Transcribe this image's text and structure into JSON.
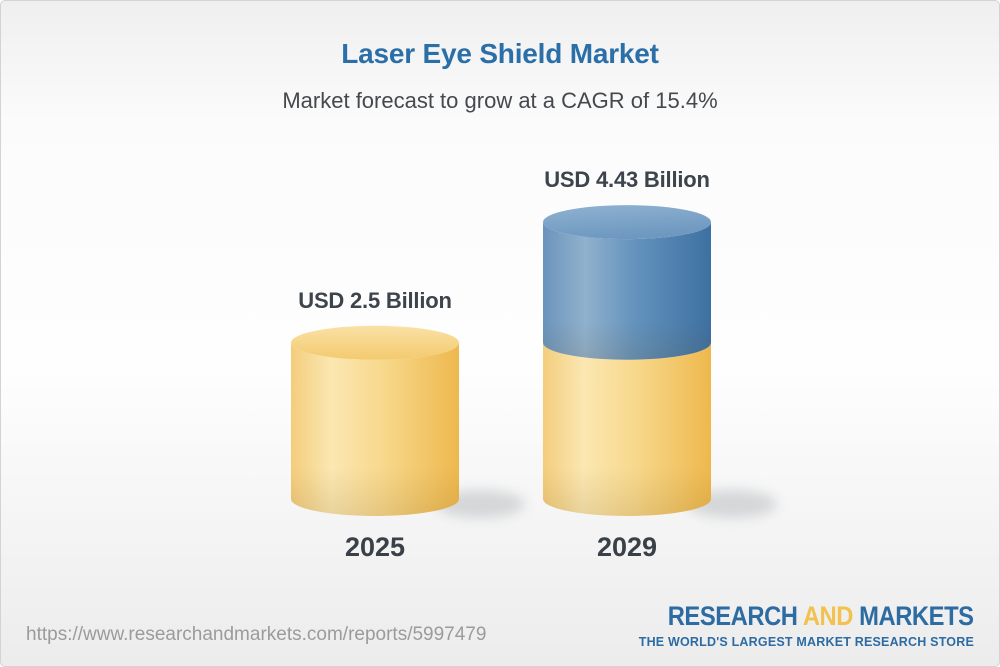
{
  "header": {
    "title": "Laser Eye Shield Market",
    "subtitle": "Market forecast to grow at a CAGR of 15.4%"
  },
  "chart_data": {
    "type": "bar",
    "subtype": "3d-cylinder",
    "title": "Laser Eye Shield Market",
    "subtitle": "Market forecast to grow at a CAGR of 15.4%",
    "categories": [
      "2025",
      "2029"
    ],
    "values": [
      2.5,
      4.43
    ],
    "value_labels": [
      "USD 2.5 Billion",
      "USD 4.43 Billion"
    ],
    "unit": "USD Billion",
    "cagr_percent": 15.4,
    "axes": "none",
    "grid": false,
    "legend": "none",
    "colors": {
      "base_segment_yellow": "#F6D488",
      "growth_segment_blue": "#5E8CB8",
      "title_blue": "#2B6FA9",
      "label_dark": "#3D444B"
    },
    "notes": "2029 cylinder is stacked: yellow base equals the 2025 value of 2.5, blue top segment is the growth up to 4.43"
  },
  "footer": {
    "url": "https://www.researchandmarkets.com/reports/5997479",
    "logo": {
      "part1": "RESEARCH",
      "part2": "AND",
      "part3": "MARKETS",
      "tagline": "THE WORLD'S LARGEST MARKET RESEARCH STORE",
      "blue": "#2D6BA3",
      "gold": "#F2C14E"
    }
  }
}
